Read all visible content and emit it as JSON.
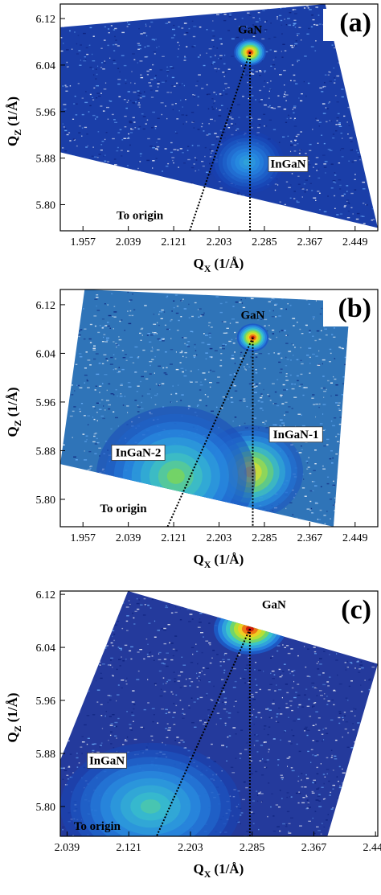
{
  "chart_data": [
    {
      "type": "heatmap",
      "panel_label": "(a)",
      "xlabel_main": "Q",
      "xlabel_sub": "X",
      "xlabel_unit": "(1/Å)",
      "ylabel_main": "Q",
      "ylabel_sub": "Z",
      "ylabel_unit": "(1/Å)",
      "xlim": [
        1.916,
        2.49
      ],
      "ylim": [
        5.755,
        6.145
      ],
      "x_ticks": [
        "1.957",
        "2.039",
        "2.121",
        "2.203",
        "2.285",
        "2.367",
        "2.449"
      ],
      "y_ticks": [
        "6.12",
        "6.04",
        "5.96",
        "5.88",
        "5.80"
      ],
      "background_color": "#1a3ea8",
      "scan_region_corners": [
        [
          1.916,
          6.105
        ],
        [
          2.395,
          6.145
        ],
        [
          2.49,
          5.76
        ],
        [
          1.916,
          5.89
        ]
      ],
      "peaks": [
        {
          "label": "GaN",
          "x": 2.259,
          "y": 6.062,
          "label_at": [
            2.259,
            6.096
          ],
          "boxed": false,
          "strength": 1.0,
          "spread": 0.012
        },
        {
          "label": "InGaN",
          "x": 2.254,
          "y": 5.873,
          "label_at": [
            2.328,
            5.865
          ],
          "boxed": true,
          "strength": 0.35,
          "spread": 0.028
        }
      ],
      "origin_line": {
        "label": "To origin",
        "from": [
          2.259,
          6.062
        ],
        "to": [
          2.15,
          5.755
        ],
        "label_at": [
          2.06,
          5.775
        ]
      },
      "vertical_line": {
        "x": 2.259,
        "from_y": 6.062,
        "to_y": 5.755
      }
    },
    {
      "type": "heatmap",
      "panel_label": "(b)",
      "xlabel_main": "Q",
      "xlabel_sub": "X",
      "xlabel_unit": "(1/Å)",
      "ylabel_main": "Q",
      "ylabel_sub": "Z",
      "ylabel_unit": "(1/Å)",
      "xlim": [
        1.916,
        2.49
      ],
      "ylim": [
        5.755,
        6.145
      ],
      "x_ticks": [
        "1.957",
        "2.039",
        "2.121",
        "2.203",
        "2.285",
        "2.367",
        "2.449"
      ],
      "y_ticks": [
        "6.12",
        "6.04",
        "5.96",
        "5.88",
        "5.80"
      ],
      "background_color": "#2f74b8",
      "scan_region_corners": [
        [
          1.96,
          6.145
        ],
        [
          2.44,
          6.125
        ],
        [
          2.41,
          5.755
        ],
        [
          1.916,
          5.858
        ]
      ],
      "peaks": [
        {
          "label": "GaN",
          "x": 2.264,
          "y": 6.066,
          "label_at": [
            2.264,
            6.098
          ],
          "boxed": false,
          "strength": 1.0,
          "spread": 0.012
        },
        {
          "label": "InGaN-1",
          "x": 2.259,
          "y": 5.845,
          "label_at": [
            2.342,
            5.902
          ],
          "boxed": true,
          "strength": 0.85,
          "spread": 0.04
        },
        {
          "label": "InGaN-2",
          "x": 2.125,
          "y": 5.838,
          "label_at": [
            2.057,
            5.872
          ],
          "boxed": true,
          "strength": 0.6,
          "spread": 0.06
        }
      ],
      "origin_line": {
        "label": "To origin",
        "from": [
          2.264,
          6.066
        ],
        "to": [
          2.11,
          5.755
        ],
        "label_at": [
          2.03,
          5.779
        ]
      },
      "vertical_line": {
        "x": 2.264,
        "from_y": 6.066,
        "to_y": 5.755
      }
    },
    {
      "type": "heatmap",
      "panel_label": "(c)",
      "xlabel_main": "Q",
      "xlabel_sub": "X",
      "xlabel_unit": "(1/Å)",
      "ylabel_main": "Q",
      "ylabel_sub": "Z",
      "ylabel_unit": "(1/Å)",
      "xlim": [
        2.03,
        2.452
      ],
      "ylim": [
        5.755,
        6.125
      ],
      "x_ticks": [
        "2.039",
        "2.121",
        "2.203",
        "2.285",
        "2.367",
        "2.449"
      ],
      "y_ticks": [
        "6.12",
        "6.04",
        "5.96",
        "5.88",
        "5.80"
      ],
      "background_color": "#243a9c",
      "scan_region_corners": [
        [
          2.12,
          6.125
        ],
        [
          2.452,
          6.015
        ],
        [
          2.385,
          5.755
        ],
        [
          2.03,
          5.755
        ],
        [
          2.03,
          5.87
        ]
      ],
      "peaks": [
        {
          "label": "GaN",
          "x": 2.282,
          "y": 6.068,
          "label_at": [
            2.314,
            6.1
          ],
          "boxed": false,
          "strength": 1.0,
          "spread": 0.02
        },
        {
          "label": "InGaN",
          "x": 2.15,
          "y": 5.8,
          "label_at": [
            2.092,
            5.865
          ],
          "boxed": true,
          "strength": 0.5,
          "spread": 0.05
        }
      ],
      "origin_line": {
        "label": "To origin",
        "from": [
          2.282,
          6.068
        ],
        "to": [
          2.158,
          5.755
        ],
        "label_at": [
          2.079,
          5.765
        ]
      },
      "vertical_line": {
        "x": 2.282,
        "from_y": 6.068,
        "to_y": 5.755
      }
    }
  ]
}
